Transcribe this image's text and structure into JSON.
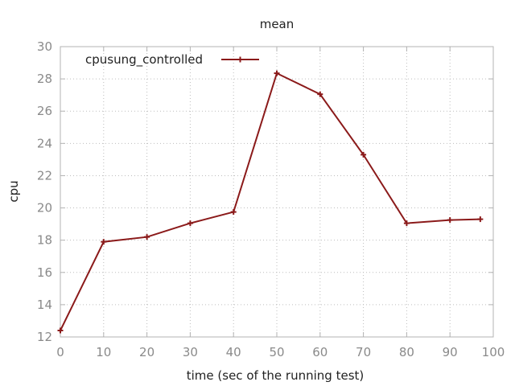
{
  "chart_data": {
    "type": "line",
    "title": "mean",
    "xlabel": "time (sec of the running test)",
    "ylabel": "cpu",
    "xlim": [
      0,
      100
    ],
    "ylim": [
      12,
      30
    ],
    "x_ticks": [
      0,
      10,
      20,
      30,
      40,
      50,
      60,
      70,
      80,
      90,
      100
    ],
    "y_ticks": [
      12,
      14,
      16,
      18,
      20,
      22,
      24,
      26,
      28,
      30
    ],
    "grid": true,
    "legend_position": "top-left",
    "series": [
      {
        "name": "cpusung_controlled",
        "legend_display": "cpusung_controlled",
        "color": "#8b1a1a",
        "marker": "plus",
        "points": [
          {
            "x": 0,
            "y": 12.4
          },
          {
            "x": 10,
            "y": 17.9
          },
          {
            "x": 20,
            "y": 18.2
          },
          {
            "x": 30,
            "y": 19.05
          },
          {
            "x": 40,
            "y": 19.75
          },
          {
            "x": 50,
            "y": 28.35
          },
          {
            "x": 60,
            "y": 27.05
          },
          {
            "x": 70,
            "y": 23.3
          },
          {
            "x": 80,
            "y": 19.05
          },
          {
            "x": 90,
            "y": 19.25
          },
          {
            "x": 97,
            "y": 19.3
          }
        ]
      }
    ]
  }
}
